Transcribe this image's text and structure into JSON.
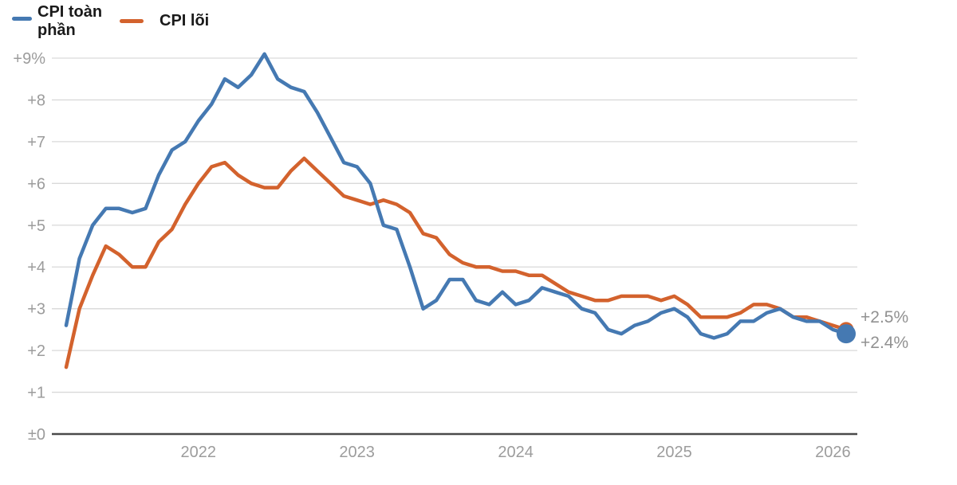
{
  "legend": {
    "series": [
      {
        "label": "CPI toàn phần",
        "color": "#4579b2"
      },
      {
        "label": "CPI lõi",
        "color": "#d3622d"
      }
    ]
  },
  "colors": {
    "headline": "#4579b2",
    "core": "#d3622d",
    "gridline": "#d9d9d9",
    "zero_line": "#4a4a4a",
    "axis_text": "#9c9c9c",
    "end_label_text": "#919191"
  },
  "chart_data": {
    "type": "line",
    "title": "",
    "xlabel": "",
    "ylabel": "",
    "ylim": [
      0,
      9
    ],
    "grid": true,
    "legend_position": "top-left",
    "x": [
      "2021-03",
      "2021-04",
      "2021-05",
      "2021-06",
      "2021-07",
      "2021-08",
      "2021-09",
      "2021-10",
      "2021-11",
      "2021-12",
      "2022-01",
      "2022-02",
      "2022-03",
      "2022-04",
      "2022-05",
      "2022-06",
      "2022-07",
      "2022-08",
      "2022-09",
      "2022-10",
      "2022-11",
      "2022-12",
      "2023-01",
      "2023-02",
      "2023-03",
      "2023-04",
      "2023-05",
      "2023-06",
      "2023-07",
      "2023-08",
      "2023-09",
      "2023-10",
      "2023-11",
      "2023-12",
      "2024-01",
      "2024-02",
      "2024-03",
      "2024-04",
      "2024-05",
      "2024-06",
      "2024-07",
      "2024-08",
      "2024-09",
      "2024-10",
      "2024-11",
      "2024-12",
      "2025-01",
      "2025-02",
      "2025-03",
      "2025-04",
      "2025-05",
      "2025-06",
      "2025-07",
      "2025-08",
      "2025-09",
      "2025-10",
      "2025-11",
      "2025-12",
      "2026-01",
      "2026-02"
    ],
    "series": [
      {
        "name": "CPI toàn phần",
        "color": "#4579b2",
        "values": [
          2.6,
          4.2,
          5.0,
          5.4,
          5.4,
          5.3,
          5.4,
          6.2,
          6.8,
          7.0,
          7.5,
          7.9,
          8.5,
          8.3,
          8.6,
          9.1,
          8.5,
          8.3,
          8.2,
          7.7,
          7.1,
          6.5,
          6.4,
          6.0,
          5.0,
          4.9,
          4.0,
          3.0,
          3.2,
          3.7,
          3.7,
          3.2,
          3.1,
          3.4,
          3.1,
          3.2,
          3.5,
          3.4,
          3.3,
          3.0,
          2.9,
          2.5,
          2.4,
          2.6,
          2.7,
          2.9,
          3.0,
          2.8,
          2.4,
          2.3,
          2.4,
          2.7,
          2.7,
          2.9,
          3.0,
          2.8,
          2.7,
          2.7,
          2.5,
          2.4
        ]
      },
      {
        "name": "CPI lõi",
        "color": "#d3622d",
        "values": [
          1.6,
          3.0,
          3.8,
          4.5,
          4.3,
          4.0,
          4.0,
          4.6,
          4.9,
          5.5,
          6.0,
          6.4,
          6.5,
          6.2,
          6.0,
          5.9,
          5.9,
          6.3,
          6.6,
          6.3,
          6.0,
          5.7,
          5.6,
          5.5,
          5.6,
          5.5,
          5.3,
          4.8,
          4.7,
          4.3,
          4.1,
          4.0,
          4.0,
          3.9,
          3.9,
          3.8,
          3.8,
          3.6,
          3.4,
          3.3,
          3.2,
          3.2,
          3.3,
          3.3,
          3.3,
          3.2,
          3.3,
          3.1,
          2.8,
          2.8,
          2.8,
          2.9,
          3.1,
          3.1,
          3.0,
          2.8,
          2.8,
          2.7,
          2.6,
          2.5
        ]
      }
    ],
    "y_ticks": [
      {
        "value": 9,
        "label": "+9%"
      },
      {
        "value": 8,
        "label": "+8"
      },
      {
        "value": 7,
        "label": "+7"
      },
      {
        "value": 6,
        "label": "+6"
      },
      {
        "value": 5,
        "label": "+5"
      },
      {
        "value": 4,
        "label": "+4"
      },
      {
        "value": 3,
        "label": "+3"
      },
      {
        "value": 2,
        "label": "+2"
      },
      {
        "value": 1,
        "label": "+1"
      },
      {
        "value": 0,
        "label": "±0"
      }
    ],
    "x_ticks": [
      {
        "index": 10,
        "label": "2022"
      },
      {
        "index": 22,
        "label": "2023"
      },
      {
        "index": 34,
        "label": "2024"
      },
      {
        "index": 46,
        "label": "2025"
      },
      {
        "index": 58,
        "label": "2026"
      }
    ],
    "end_labels": [
      {
        "series": "CPI lõi",
        "text": "+2.5%"
      },
      {
        "series": "CPI toàn phần",
        "text": "+2.4%"
      }
    ],
    "end_markers": [
      {
        "series": "CPI lõi",
        "value": 2.5
      },
      {
        "series": "CPI toàn phần",
        "value": 2.4
      }
    ]
  }
}
